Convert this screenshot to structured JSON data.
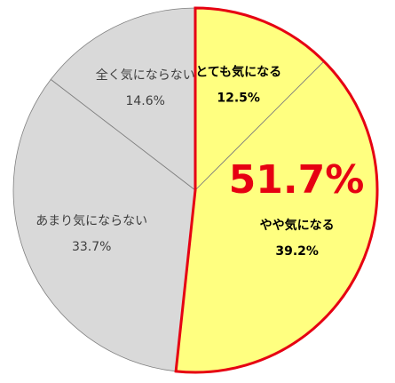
{
  "chart_data": {
    "type": "pie",
    "categories": [
      "とても気になる",
      "やや気になる",
      "あまり気にならない",
      "全く気にならない"
    ],
    "values": [
      12.5,
      39.2,
      33.7,
      14.6
    ],
    "value_labels": [
      "12.5%",
      "39.2%",
      "33.7%",
      "14.6%"
    ],
    "colors": [
      "#ffff80",
      "#ffff80",
      "#d9d9d9",
      "#d9d9d9"
    ],
    "annotation": "51.7%",
    "highlight_color": "#e60012"
  }
}
